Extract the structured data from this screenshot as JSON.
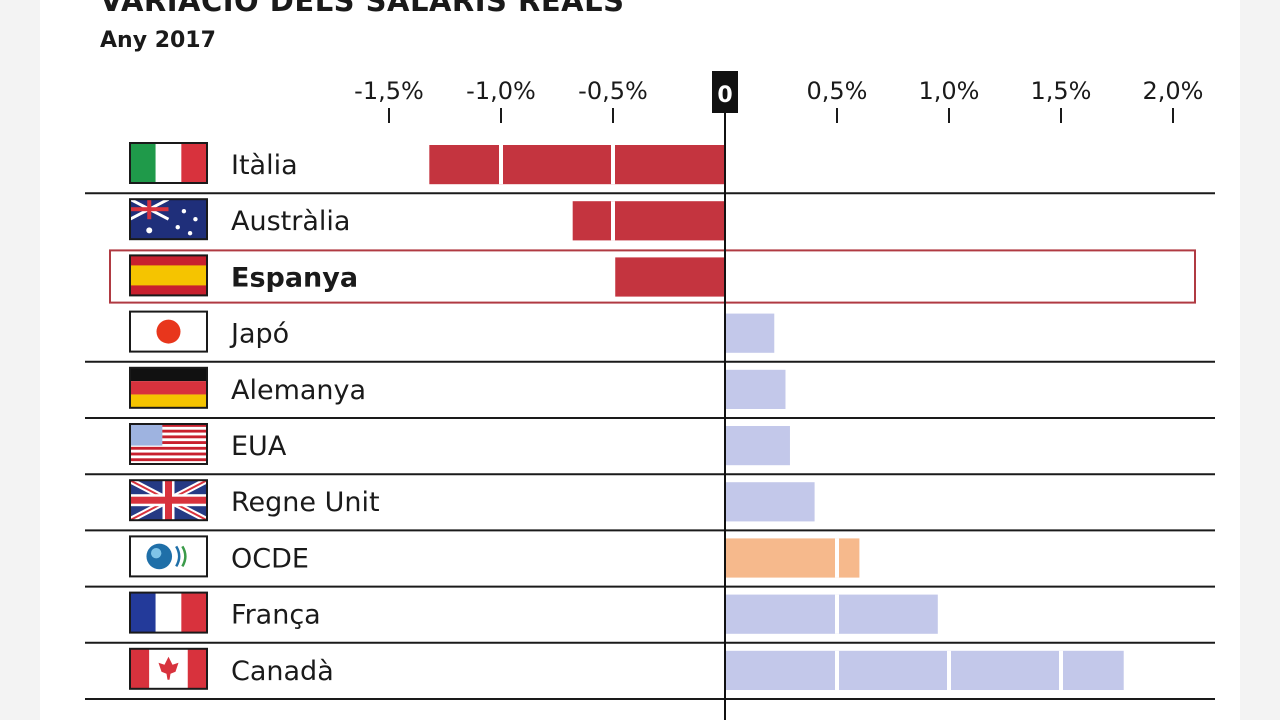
{
  "chart_data": {
    "type": "bar",
    "orientation": "horizontal",
    "title": "VARIACIÓ DELS SALARIS REALS",
    "subtitle": "Any 2017",
    "xlim": [
      -1.5,
      2.0
    ],
    "ticks": [
      -1.5,
      -1.0,
      -0.5,
      0,
      0.5,
      1.0,
      1.5,
      2.0
    ],
    "tick_labels": [
      "-1,5%",
      "-1,0%",
      "-0,5%",
      "0",
      "0,5%",
      "1,0%",
      "1,5%",
      "2,0%"
    ],
    "categories": [
      "Itàlia",
      "Austràlia",
      "Espanya",
      "Japó",
      "Alemanya",
      "EUA",
      "Regne Unit",
      "OCDE",
      "França",
      "Canadà"
    ],
    "values": [
      -1.32,
      -0.68,
      -0.49,
      0.22,
      0.27,
      0.29,
      0.4,
      0.6,
      0.95,
      1.78
    ],
    "flags": [
      "italy-flag",
      "australia-flag",
      "spain-flag",
      "japan-flag",
      "germany-flag",
      "usa-flag",
      "uk-flag",
      "oecd-logo",
      "france-flag",
      "canada-flag"
    ],
    "highlight": "Espanya",
    "colors": {
      "negative": "#c4343f",
      "positive": "#c3c8ea",
      "oecd": "#f6b98c",
      "highlight_border": "#b03a42",
      "separator": "#1a1a1a"
    }
  }
}
